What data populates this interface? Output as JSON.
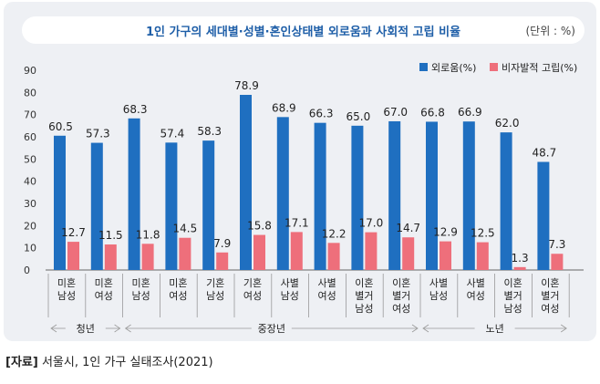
{
  "title": "1인 가구의 세대별·성별·혼인상태별 외로움과 사회적 고립 비율",
  "unit": "(단위 : %)",
  "source_label": "[자료]",
  "source_text": "서울시, 1인 가구 실태조사(2021)",
  "colors": {
    "loneliness": "#1f6fc0",
    "isolation": "#ee6f7b"
  },
  "chart_data": {
    "type": "bar",
    "categories": [
      [
        "미혼",
        "남성"
      ],
      [
        "미혼",
        "여성"
      ],
      [
        "미혼",
        "남성"
      ],
      [
        "미혼",
        "여성"
      ],
      [
        "기혼",
        "남성"
      ],
      [
        "기혼",
        "여성"
      ],
      [
        "사별",
        "남성"
      ],
      [
        "사별",
        "여성"
      ],
      [
        "이혼",
        "별거",
        "남성"
      ],
      [
        "이혼",
        "별거",
        "여성"
      ],
      [
        "사별",
        "남성"
      ],
      [
        "사별",
        "여성"
      ],
      [
        "이혼",
        "별거",
        "남성"
      ],
      [
        "이혼",
        "별거",
        "여성"
      ]
    ],
    "series": [
      {
        "name": "외로움(%)",
        "values": [
          60.5,
          57.3,
          68.3,
          57.4,
          58.3,
          78.9,
          68.9,
          66.3,
          65.0,
          67.0,
          66.8,
          66.9,
          62.0,
          48.7
        ]
      },
      {
        "name": "비자발적 고립(%)",
        "values": [
          12.7,
          11.5,
          11.8,
          14.5,
          7.9,
          15.8,
          17.1,
          12.2,
          17.0,
          14.7,
          12.9,
          12.5,
          1.3,
          7.3
        ]
      }
    ],
    "groups": [
      {
        "label": "청년",
        "from": 0,
        "to": 1
      },
      {
        "label": "중장년",
        "from": 2,
        "to": 9
      },
      {
        "label": "노년",
        "from": 10,
        "to": 13
      }
    ],
    "ylim": [
      0,
      90
    ],
    "yticks": [
      0,
      10,
      20,
      30,
      40,
      50,
      60,
      70,
      80,
      90
    ],
    "legend": "top-right",
    "grid": false
  }
}
